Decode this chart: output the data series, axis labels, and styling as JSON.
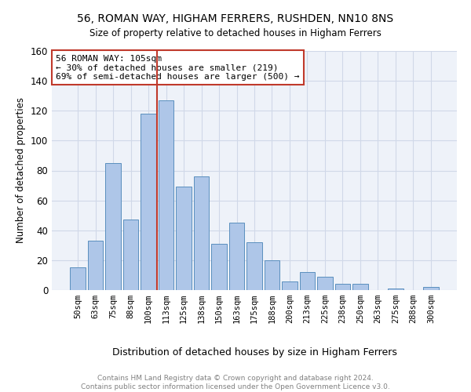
{
  "title": "56, ROMAN WAY, HIGHAM FERRERS, RUSHDEN, NN10 8NS",
  "subtitle": "Size of property relative to detached houses in Higham Ferrers",
  "xlabel": "Distribution of detached houses by size in Higham Ferrers",
  "ylabel": "Number of detached properties",
  "categories": [
    "50sqm",
    "63sqm",
    "75sqm",
    "88sqm",
    "100sqm",
    "113sqm",
    "125sqm",
    "138sqm",
    "150sqm",
    "163sqm",
    "175sqm",
    "188sqm",
    "200sqm",
    "213sqm",
    "225sqm",
    "238sqm",
    "250sqm",
    "263sqm",
    "275sqm",
    "288sqm",
    "300sqm"
  ],
  "values": [
    15,
    33,
    85,
    47,
    118,
    127,
    69,
    76,
    31,
    45,
    32,
    20,
    6,
    12,
    9,
    4,
    4,
    0,
    1,
    0,
    2
  ],
  "bar_color": "#aec6e8",
  "bar_edge_color": "#5a8fbe",
  "vline_color": "#c0392b",
  "vline_pos": 4.5,
  "annotation_lines": [
    "56 ROMAN WAY: 105sqm",
    "← 30% of detached houses are smaller (219)",
    "69% of semi-detached houses are larger (500) →"
  ],
  "annotation_box_color": "#ffffff",
  "annotation_box_edge_color": "#c0392b",
  "ylim": [
    0,
    160
  ],
  "yticks": [
    0,
    20,
    40,
    60,
    80,
    100,
    120,
    140,
    160
  ],
  "grid_color": "#d0d8e8",
  "footer_line1": "Contains HM Land Registry data © Crown copyright and database right 2024.",
  "footer_line2": "Contains public sector information licensed under the Open Government Licence v3.0.",
  "footer_color": "#808080",
  "bg_color": "#eef2f9"
}
